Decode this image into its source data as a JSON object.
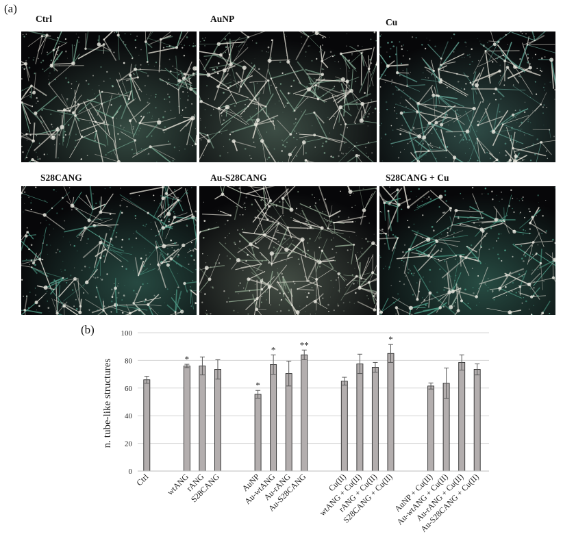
{
  "figure": {
    "panel_a_label": "(a)",
    "panel_b_label": "(b)"
  },
  "panel_a": {
    "images": [
      {
        "title": "Ctrl",
        "tint": "#6fa08a"
      },
      {
        "title": "AuNP",
        "tint": "#7fa48f"
      },
      {
        "title": "Cu",
        "tint": "#5f9e90"
      },
      {
        "title": "S28CANG",
        "tint": "#4e9a86"
      },
      {
        "title": "Au-S28CANG",
        "tint": "#8fa58f"
      },
      {
        "title": "S28CANG + Cu",
        "tint": "#4fa08a"
      }
    ]
  },
  "chart_data": {
    "type": "bar",
    "ylabel": "n. tube-like structures",
    "ylim": [
      0,
      100
    ],
    "yticks": [
      0,
      20,
      40,
      60,
      80,
      100
    ],
    "grid": true,
    "bar_color": "#b3aeae",
    "bar_edge": "#2a2a2a",
    "categories": [
      "Ctrl",
      "wtANG",
      "rANG",
      "S28CANG",
      "AuNP",
      "Au-wtANG",
      "Au-rANG",
      "Au-S28CANG",
      "Cu(II)",
      "wtANG + Cu(II)",
      "rANG + Cu(II)",
      "S28CANG + Cu(II)",
      "AuNP + Cu(II)",
      "Au-wtANG + Cu(II)",
      "Au-rANG + Cu(II)",
      "Au-S28CANG + Cu(II)"
    ],
    "groups": [
      [
        0
      ],
      [
        1,
        2,
        3
      ],
      [
        4,
        5,
        6,
        7
      ],
      [
        8,
        9,
        10,
        11
      ],
      [
        12,
        13,
        14,
        15
      ]
    ],
    "values": [
      66,
      76,
      76,
      73.5,
      55.5,
      77,
      70.5,
      84,
      65,
      77.5,
      75,
      85,
      61.5,
      63.5,
      78.5,
      73.5
    ],
    "errors": [
      2.5,
      1.2,
      6.5,
      7,
      2.8,
      7,
      9,
      3.5,
      2.8,
      7,
      3.5,
      6.5,
      2.2,
      11,
      5.5,
      4
    ],
    "significance": [
      "",
      "*",
      "",
      "",
      "*",
      "*",
      "",
      "**",
      "",
      "",
      "",
      "*",
      "",
      "",
      "",
      ""
    ]
  }
}
